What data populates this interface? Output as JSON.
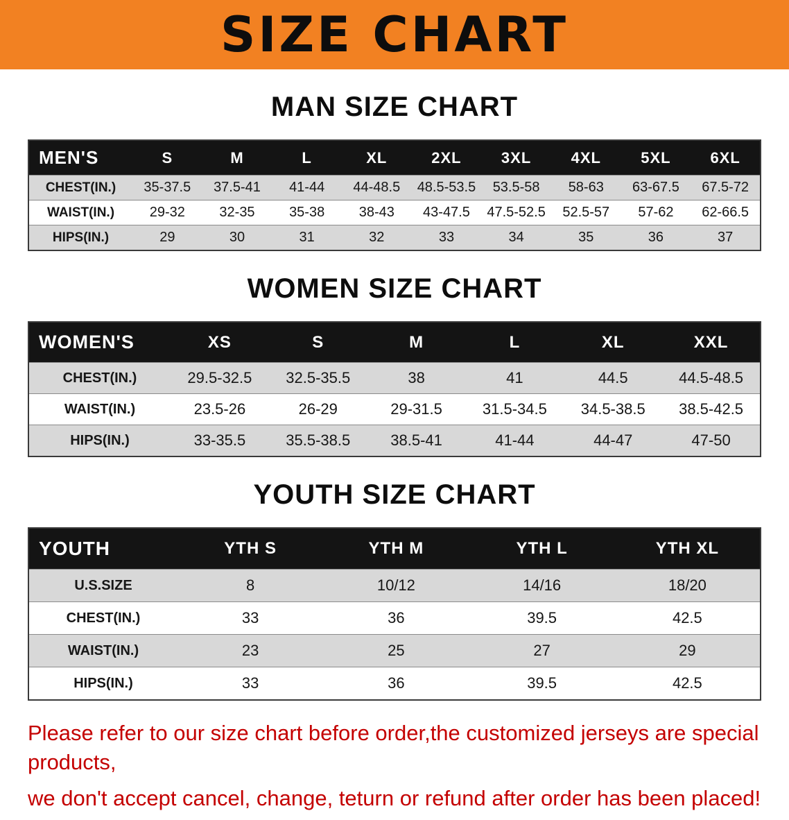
{
  "theme": {
    "banner_bg": "#F28122",
    "header_bg": "#141414",
    "stripe": "#D8D8D8",
    "text": "#161616",
    "disclaimer_red": "#C40000"
  },
  "banner": {
    "title": "SIZE CHART"
  },
  "sections": [
    {
      "id": "men",
      "heading": "MAN SIZE CHART",
      "table": {
        "header": [
          "MEN'S",
          "S",
          "M",
          "L",
          "XL",
          "2XL",
          "3XL",
          "4XL",
          "5XL",
          "6XL"
        ],
        "rows": [
          [
            "CHEST(IN.)",
            "35-37.5",
            "37.5-41",
            "41-44",
            "44-48.5",
            "48.5-53.5",
            "53.5-58",
            "58-63",
            "63-67.5",
            "67.5-72"
          ],
          [
            "WAIST(IN.)",
            "29-32",
            "32-35",
            "35-38",
            "38-43",
            "43-47.5",
            "47.5-52.5",
            "52.5-57",
            "57-62",
            "62-66.5"
          ],
          [
            "HIPS(IN.)",
            "29",
            "30",
            "31",
            "32",
            "33",
            "34",
            "35",
            "36",
            "37"
          ]
        ]
      }
    },
    {
      "id": "women",
      "heading": "WOMEN SIZE CHART",
      "table": {
        "header": [
          "WOMEN'S",
          "XS",
          "S",
          "M",
          "L",
          "XL",
          "XXL"
        ],
        "rows": [
          [
            "CHEST(IN.)",
            "29.5-32.5",
            "32.5-35.5",
            "38",
            "41",
            "44.5",
            "44.5-48.5"
          ],
          [
            "WAIST(IN.)",
            "23.5-26",
            "26-29",
            "29-31.5",
            "31.5-34.5",
            "34.5-38.5",
            "38.5-42.5"
          ],
          [
            "HIPS(IN.)",
            "33-35.5",
            "35.5-38.5",
            "38.5-41",
            "41-44",
            "44-47",
            "47-50"
          ]
        ]
      }
    },
    {
      "id": "youth",
      "heading": "YOUTH SIZE CHART",
      "table": {
        "header": [
          "YOUTH",
          "YTH S",
          "YTH M",
          "YTH L",
          "YTH XL"
        ],
        "rows": [
          [
            "U.S.SIZE",
            "8",
            "10/12",
            "14/16",
            "18/20"
          ],
          [
            "CHEST(IN.)",
            "33",
            "36",
            "39.5",
            "42.5"
          ],
          [
            "WAIST(IN.)",
            "23",
            "25",
            "27",
            "29"
          ],
          [
            "HIPS(IN.)",
            "33",
            "36",
            "39.5",
            "42.5"
          ]
        ]
      }
    }
  ],
  "disclaimer": {
    "lines": [
      "Please refer to our size chart before order,the customized jerseys are special products,",
      "we don't accept cancel, change, teturn or refund after order has been placed!"
    ]
  }
}
